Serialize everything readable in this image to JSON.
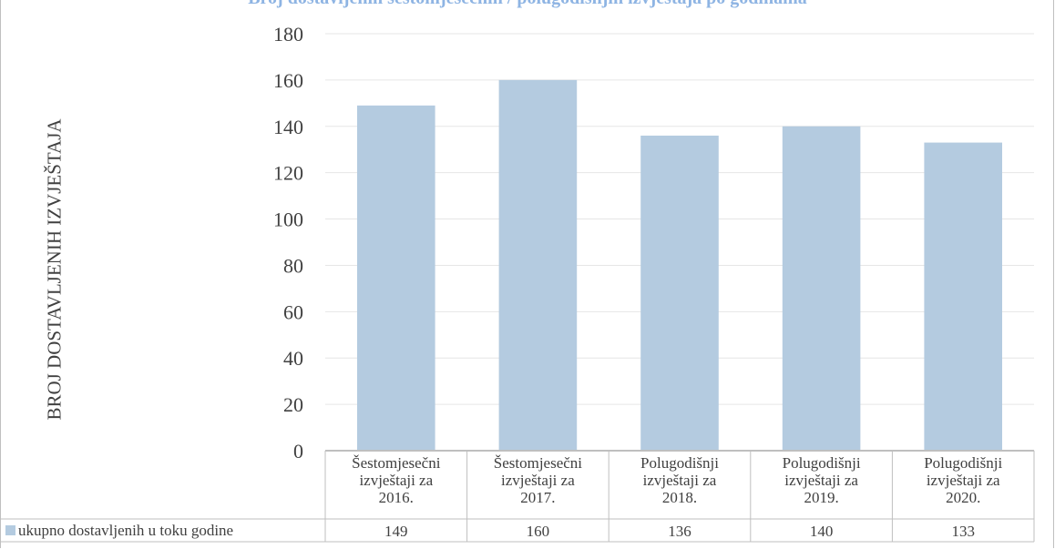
{
  "chart_data": {
    "type": "bar",
    "title": "Broj dostavljenih šestomjesečnih / polugodišnjih izvještaja po godinama",
    "ylabel": "BROJ DOSTAVLJENIH IZVJEŠTAJA",
    "xlabel": "",
    "ylim": [
      0,
      180
    ],
    "yticks": [
      0,
      20,
      40,
      60,
      80,
      100,
      120,
      140,
      160,
      180
    ],
    "grid": true,
    "categories": [
      [
        "Šestomjesečni",
        "izvještaji za",
        "2016."
      ],
      [
        "Šestomjesečni",
        "izvještaji za",
        "2017."
      ],
      [
        "Polugodišnji",
        "izvještaji za",
        "2018."
      ],
      [
        "Polugodišnji",
        "izvještaji za",
        "2019."
      ],
      [
        "Polugodišnji",
        "izvještaji za",
        "2020."
      ]
    ],
    "series": [
      {
        "name": "ukupno dostavljenih u toku godine",
        "values": [
          149,
          160,
          136,
          140,
          133
        ]
      }
    ],
    "legend": "data-table-left",
    "colors": {
      "bar": "#b4cbe0",
      "grid": "#e6e6e6",
      "axis": "#bfbfbf",
      "title": "#8eb4e3",
      "text": "#404040"
    }
  }
}
